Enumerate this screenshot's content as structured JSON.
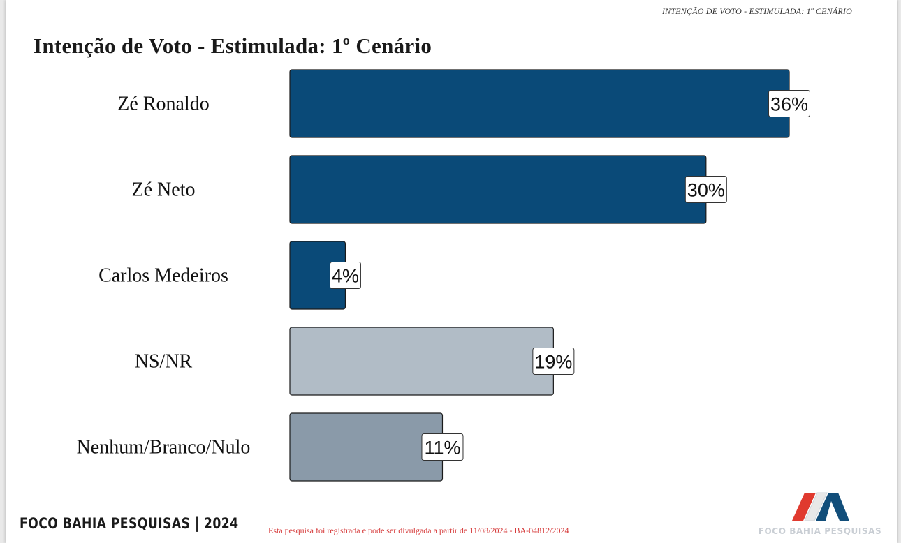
{
  "header_caption": "INTENÇÃO DE VOTO - ESTIMULADA: 1º CENÁRIO",
  "footer": {
    "brand": "FOCO BAHIA PESQUISAS | 2024",
    "note": "Esta pesquisa foi registrada e pode ser divulgada a partir de 11/08/2024 - BA-04812/2024",
    "logo_text": "FOCO BAHIA PESQUISAS"
  },
  "colors": {
    "primary": "#0a4a78",
    "light_gray": "#b1bcc6",
    "mid_gray": "#8a9aa9"
  },
  "chart_data": {
    "type": "bar",
    "orientation": "horizontal",
    "title": "Intenção de Voto - Estimulada: 1º Cenário",
    "categories": [
      "Zé Ronaldo",
      "Zé Neto",
      "Carlos Medeiros",
      "NS/NR",
      "Nenhum/Branco/Nulo"
    ],
    "values": [
      36,
      30,
      4,
      19,
      11
    ],
    "value_labels": [
      "36%",
      "30%",
      "4%",
      "19%",
      "11%"
    ],
    "bar_colors": [
      "#0a4a78",
      "#0a4a78",
      "#0a4a78",
      "#b1bcc6",
      "#8a9aa9"
    ],
    "xlim": [
      0,
      36
    ],
    "grid": false,
    "legend": "none"
  }
}
